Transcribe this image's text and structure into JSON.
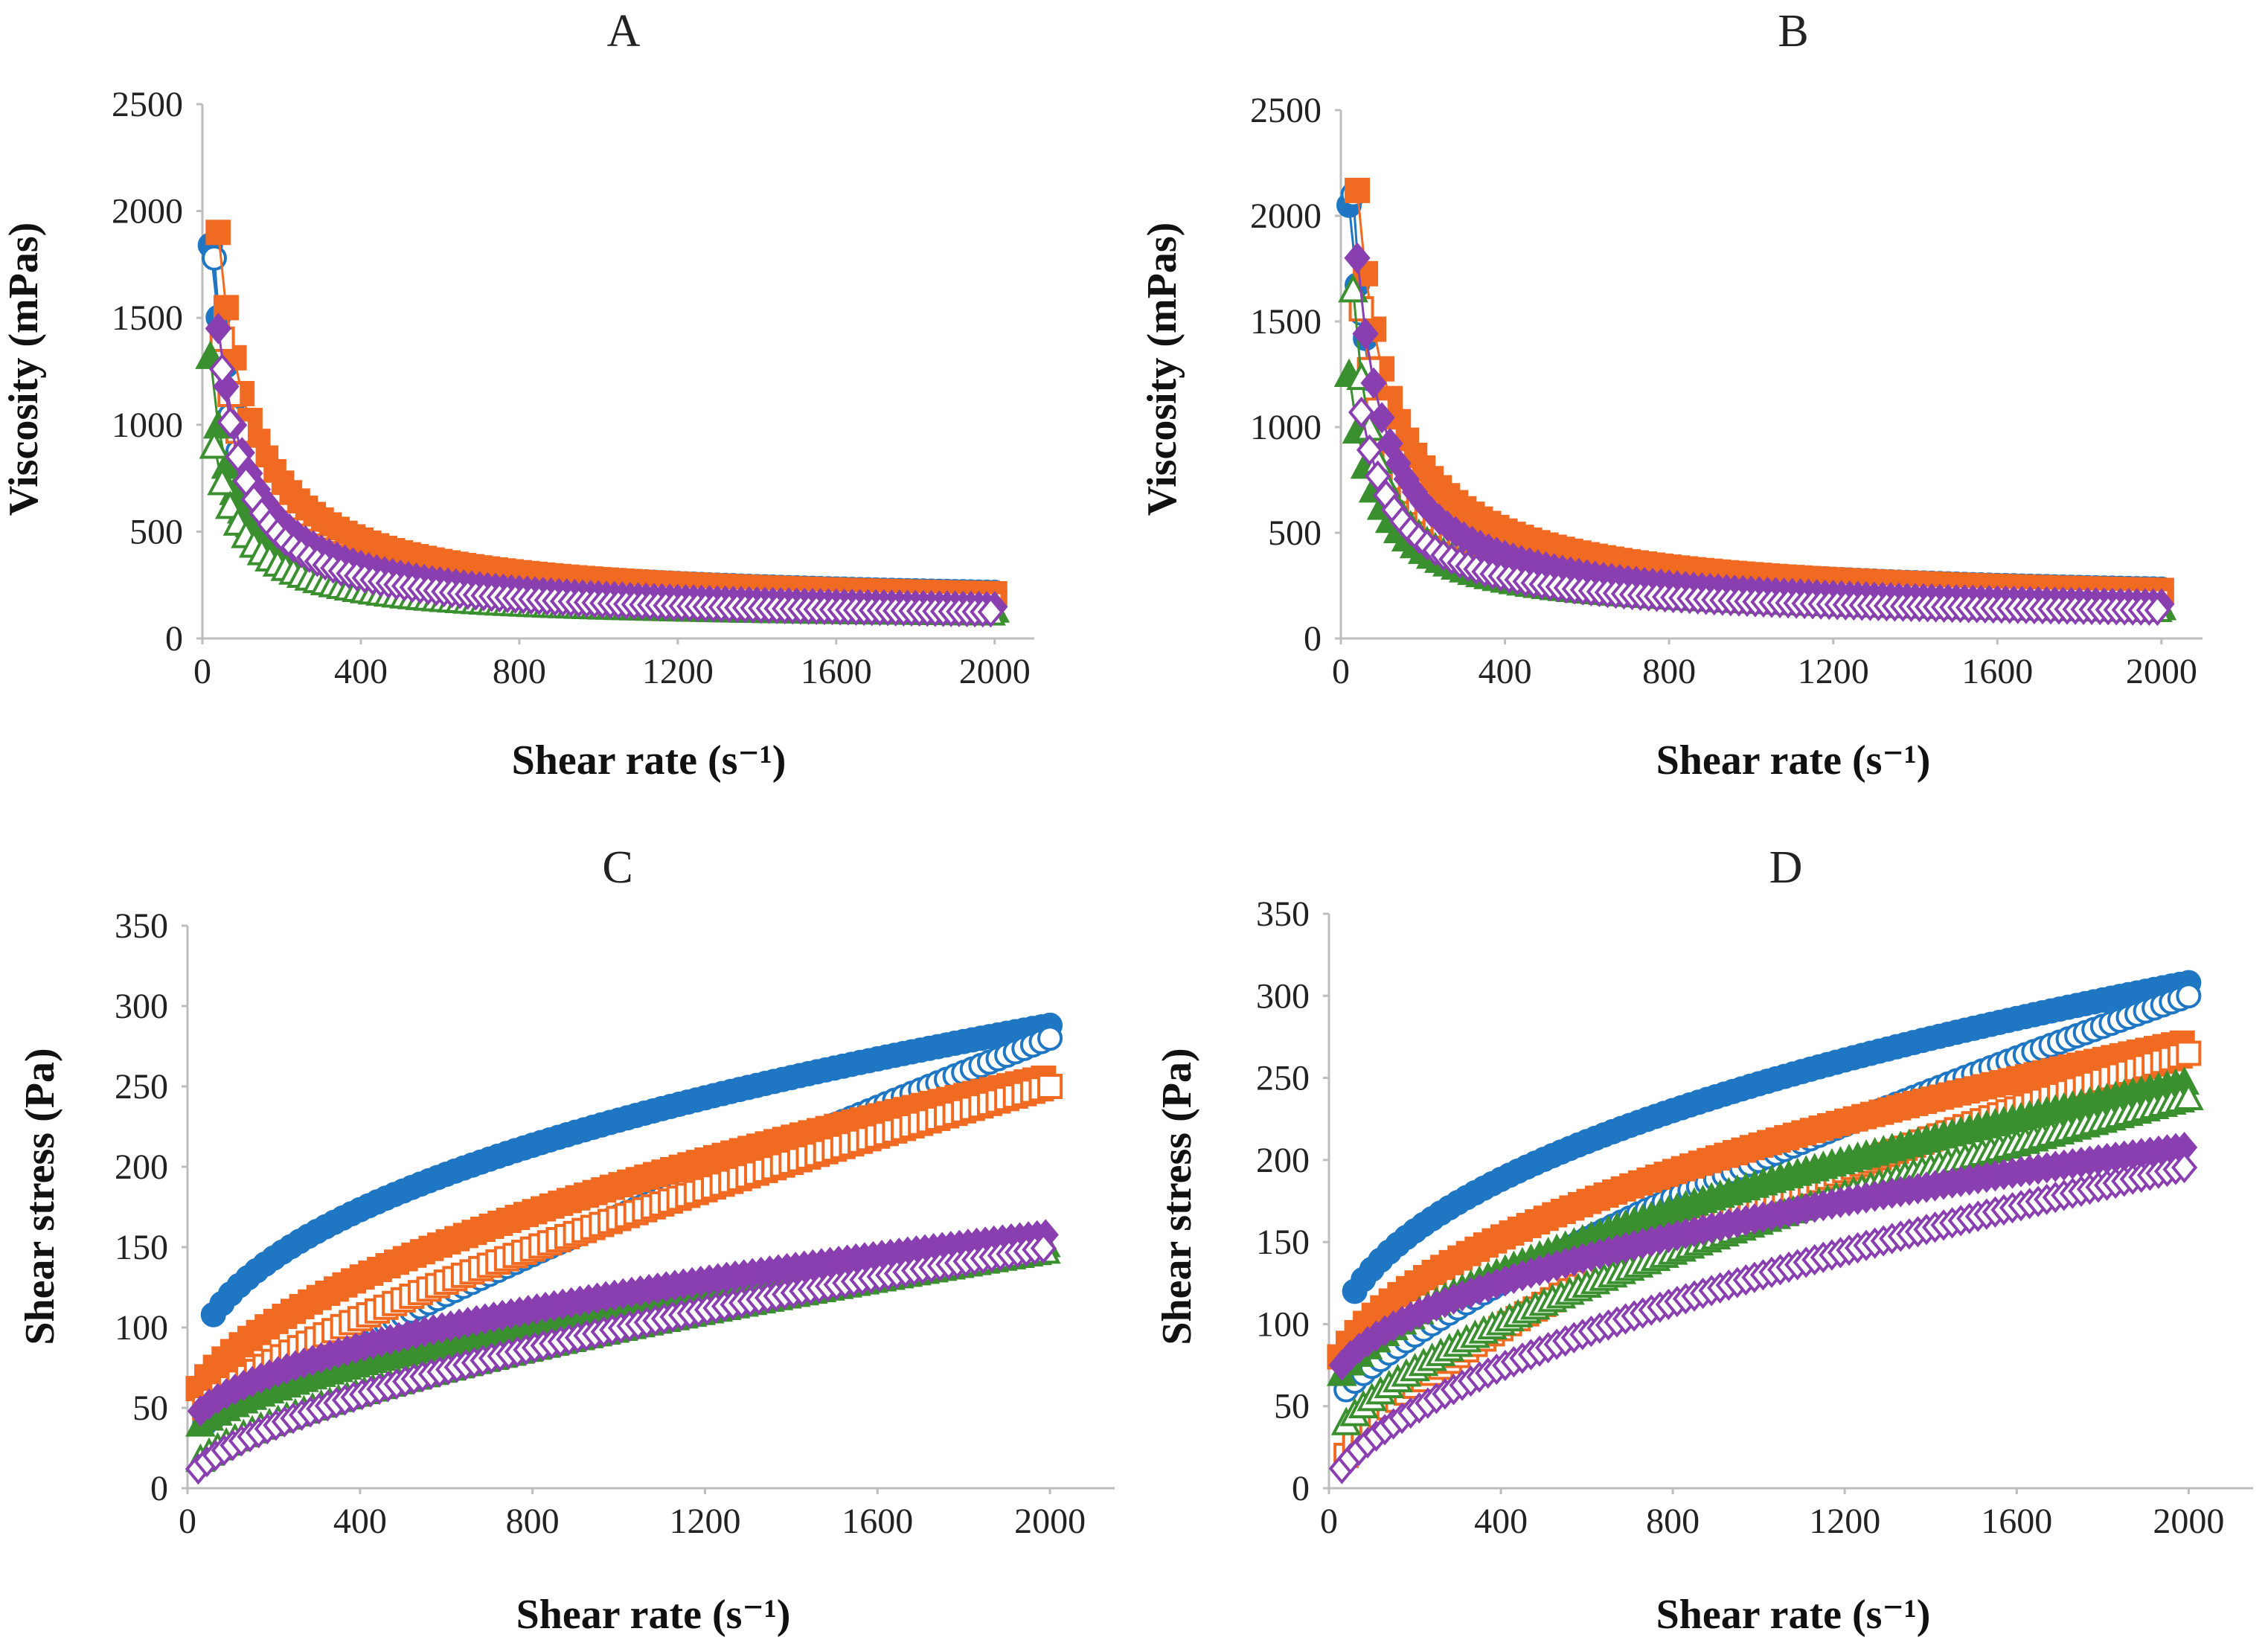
{
  "colors": {
    "blue": "#1f77c4",
    "orange": "#f06a22",
    "green": "#3a8f2f",
    "purple": "#8a3fb0",
    "axis": "#bdbdbd",
    "text": "#222222"
  },
  "chart_data": [
    {
      "type": "scatter",
      "title": "A",
      "xlabel": "Shear rate (s⁻¹)",
      "ylabel": "Viscosity (mPas)",
      "xlim": [
        0,
        2100
      ],
      "ylim": [
        0,
        2500
      ],
      "xticks": [
        0,
        400,
        800,
        1200,
        1600,
        2000
      ],
      "yticks": [
        0,
        500,
        1000,
        1500,
        2000,
        2500
      ],
      "model": "viscosity",
      "series": [
        {
          "name": "blue filled circle",
          "color": "blue",
          "marker": "circle",
          "filled": true,
          "start": 1840,
          "end": 150,
          "shift": 60
        },
        {
          "name": "blue open circle",
          "color": "blue",
          "marker": "circle",
          "filled": false,
          "start": 1780,
          "end": 120,
          "shift": 20
        },
        {
          "name": "orange filled square",
          "color": "orange",
          "marker": "square",
          "filled": true,
          "start": 1900,
          "end": 140,
          "shift": 40
        },
        {
          "name": "orange open square",
          "color": "orange",
          "marker": "square",
          "filled": false,
          "start": 1400,
          "end": 110,
          "shift": 30
        },
        {
          "name": "green filled triangle",
          "color": "green",
          "marker": "triangle",
          "filled": true,
          "start": 1320,
          "end": 100,
          "shift": 35
        },
        {
          "name": "green open triangle",
          "color": "green",
          "marker": "triangle",
          "filled": false,
          "start": 900,
          "end": 90,
          "shift": 45
        },
        {
          "name": "purple filled diamond",
          "color": "purple",
          "marker": "diamond",
          "filled": true,
          "start": 1450,
          "end": 95,
          "shift": 40
        },
        {
          "name": "purple open diamond",
          "color": "purple",
          "marker": "diamond",
          "filled": false,
          "start": 1260,
          "end": 80,
          "shift": 25
        }
      ]
    },
    {
      "type": "scatter",
      "title": "B",
      "xlabel": "Shear rate (s⁻¹)",
      "ylabel": "Viscosity (mPas)",
      "xlim": [
        0,
        2100
      ],
      "ylim": [
        0,
        2500
      ],
      "xticks": [
        0,
        400,
        800,
        1200,
        1600,
        2000
      ],
      "yticks": [
        0,
        500,
        1000,
        1500,
        2000,
        2500
      ],
      "model": "viscosity",
      "series": [
        {
          "name": "blue filled circle",
          "color": "blue",
          "marker": "circle",
          "filled": true,
          "start": 2050,
          "end": 160,
          "shift": 60
        },
        {
          "name": "blue open circle",
          "color": "blue",
          "marker": "circle",
          "filled": false,
          "start": 2100,
          "end": 140,
          "shift": 20
        },
        {
          "name": "orange filled square",
          "color": "orange",
          "marker": "square",
          "filled": true,
          "start": 2120,
          "end": 150,
          "shift": 40
        },
        {
          "name": "orange open square",
          "color": "orange",
          "marker": "square",
          "filled": false,
          "start": 1560,
          "end": 120,
          "shift": 30
        },
        {
          "name": "green filled triangle",
          "color": "green",
          "marker": "triangle",
          "filled": true,
          "start": 1250,
          "end": 110,
          "shift": 45
        },
        {
          "name": "green open triangle",
          "color": "green",
          "marker": "triangle",
          "filled": false,
          "start": 1650,
          "end": 95,
          "shift": 25
        },
        {
          "name": "purple filled diamond",
          "color": "purple",
          "marker": "diamond",
          "filled": true,
          "start": 1800,
          "end": 100,
          "shift": 35
        },
        {
          "name": "purple open diamond",
          "color": "purple",
          "marker": "diamond",
          "filled": false,
          "start": 1070,
          "end": 90,
          "shift": 40
        }
      ]
    },
    {
      "type": "scatter",
      "title": "C",
      "xlabel": "Shear rate (s⁻¹)",
      "ylabel": "Shear stress (Pa)",
      "xlim": [
        0,
        2150
      ],
      "ylim": [
        0,
        350
      ],
      "xticks": [
        0,
        400,
        800,
        1200,
        1600,
        2000
      ],
      "yticks": [
        0,
        50,
        100,
        150,
        200,
        250,
        300,
        350
      ],
      "model": "stress",
      "series": [
        {
          "name": "blue filled circle",
          "color": "blue",
          "marker": "circle",
          "filled": true,
          "x0": 60,
          "y0": 108,
          "y1": 288,
          "n": 0.42
        },
        {
          "name": "blue open circle",
          "color": "blue",
          "marker": "circle",
          "filled": false,
          "x0": 40,
          "y0": 40,
          "y1": 280,
          "n": 0.85
        },
        {
          "name": "orange filled square",
          "color": "orange",
          "marker": "square",
          "filled": true,
          "x0": 25,
          "y0": 62,
          "y1": 256,
          "n": 0.55
        },
        {
          "name": "orange open square",
          "color": "orange",
          "marker": "square",
          "filled": false,
          "x0": 40,
          "y0": 50,
          "y1": 250,
          "n": 0.7
        },
        {
          "name": "green filled triangle",
          "color": "green",
          "marker": "triangle",
          "filled": true,
          "x0": 30,
          "y0": 40,
          "y1": 152,
          "n": 0.58
        },
        {
          "name": "green open triangle",
          "color": "green",
          "marker": "triangle",
          "filled": false,
          "x0": 30,
          "y0": 18,
          "y1": 148,
          "n": 0.62
        },
        {
          "name": "purple filled diamond",
          "color": "purple",
          "marker": "diamond",
          "filled": true,
          "x0": 30,
          "y0": 48,
          "y1": 158,
          "n": 0.52
        },
        {
          "name": "purple open diamond",
          "color": "purple",
          "marker": "diamond",
          "filled": false,
          "x0": 25,
          "y0": 12,
          "y1": 150,
          "n": 0.6
        }
      ]
    },
    {
      "type": "scatter",
      "title": "D",
      "xlabel": "Shear rate (s⁻¹)",
      "ylabel": "Shear stress (Pa)",
      "xlim": [
        0,
        2150
      ],
      "ylim": [
        0,
        350
      ],
      "xticks": [
        0,
        400,
        800,
        1200,
        1600,
        2000
      ],
      "yticks": [
        0,
        50,
        100,
        150,
        200,
        250,
        300,
        350
      ],
      "model": "stress",
      "series": [
        {
          "name": "blue filled circle",
          "color": "blue",
          "marker": "circle",
          "filled": true,
          "x0": 60,
          "y0": 120,
          "y1": 308,
          "n": 0.42
        },
        {
          "name": "blue open circle",
          "color": "blue",
          "marker": "circle",
          "filled": false,
          "x0": 40,
          "y0": 60,
          "y1": 300,
          "n": 0.72
        },
        {
          "name": "orange filled square",
          "color": "orange",
          "marker": "square",
          "filled": true,
          "x0": 25,
          "y0": 80,
          "y1": 272,
          "n": 0.5
        },
        {
          "name": "orange open square",
          "color": "orange",
          "marker": "square",
          "filled": false,
          "x0": 40,
          "y0": 20,
          "y1": 265,
          "n": 0.6
        },
        {
          "name": "green filled triangle",
          "color": "green",
          "marker": "triangle",
          "filled": true,
          "x0": 30,
          "y0": 70,
          "y1": 248,
          "n": 0.55
        },
        {
          "name": "green open triangle",
          "color": "green",
          "marker": "triangle",
          "filled": false,
          "x0": 40,
          "y0": 40,
          "y1": 238,
          "n": 0.62
        },
        {
          "name": "purple filled diamond",
          "color": "purple",
          "marker": "diamond",
          "filled": true,
          "x0": 30,
          "y0": 75,
          "y1": 208,
          "n": 0.48
        },
        {
          "name": "purple open diamond",
          "color": "purple",
          "marker": "diamond",
          "filled": false,
          "x0": 30,
          "y0": 12,
          "y1": 196,
          "n": 0.58
        }
      ]
    }
  ]
}
